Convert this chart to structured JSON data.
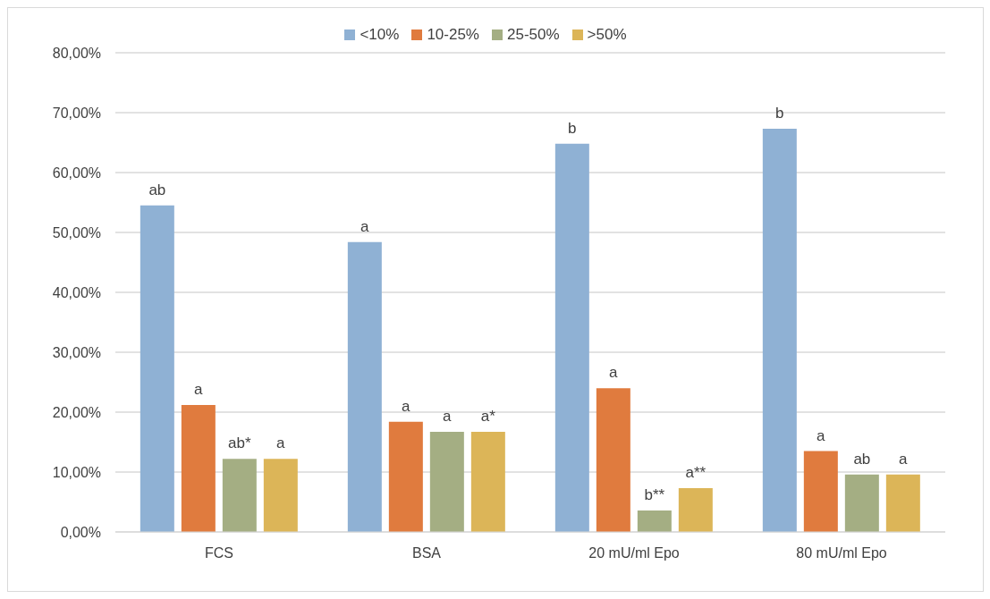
{
  "chart_data": {
    "type": "bar",
    "categories": [
      "FCS",
      "BSA",
      "20 mU/ml Epo",
      "80 mU/ml Epo"
    ],
    "series": [
      {
        "name": "<10%",
        "color": "#8fb1d4",
        "values": [
          54.5,
          48.4,
          64.8,
          67.3
        ],
        "value_labels": [
          "ab",
          "a",
          "b",
          "b"
        ]
      },
      {
        "name": "10-25%",
        "color": "#e07b3e",
        "values": [
          21.2,
          18.4,
          24.0,
          13.5
        ],
        "value_labels": [
          "a",
          "a",
          "a",
          "a"
        ]
      },
      {
        "name": "25-50%",
        "color": "#a4ae83",
        "values": [
          12.2,
          16.7,
          3.6,
          9.6
        ],
        "value_labels": [
          "ab*",
          "a",
          "b**",
          "ab"
        ]
      },
      {
        "name": ">50%",
        "color": "#dcb558",
        "values": [
          12.2,
          16.7,
          7.3,
          9.6
        ],
        "value_labels": [
          "a",
          "a*",
          "a**",
          "a"
        ]
      }
    ],
    "ylim": [
      0,
      80
    ],
    "yticks": [
      {
        "value": 0,
        "label": "0,00%"
      },
      {
        "value": 10,
        "label": "10,00%"
      },
      {
        "value": 20,
        "label": "20,00%"
      },
      {
        "value": 30,
        "label": "30,00%"
      },
      {
        "value": 40,
        "label": "40,00%"
      },
      {
        "value": 50,
        "label": "50,00%"
      },
      {
        "value": 60,
        "label": "60,00%"
      },
      {
        "value": 70,
        "label": "70,00%"
      },
      {
        "value": 80,
        "label": "80,00%"
      }
    ],
    "grid": "y",
    "legend": "top"
  }
}
